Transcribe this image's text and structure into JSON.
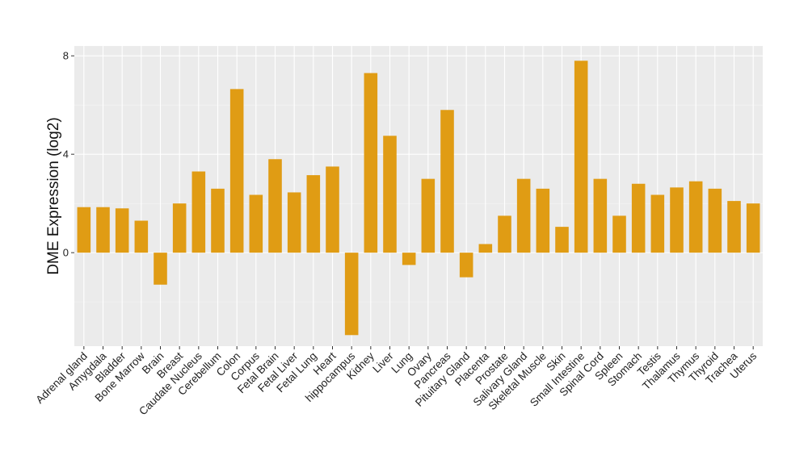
{
  "chart_data": {
    "type": "bar",
    "title": "",
    "xlabel": "",
    "ylabel": "DME Expression (log2)",
    "ylim": [
      -3.8,
      8.4
    ],
    "yticks": [
      0,
      4,
      8
    ],
    "grid": true,
    "colors": {
      "bar": "#e09c14",
      "panel": "#ebebeb",
      "grid": "#ffffff"
    },
    "categories": [
      "Adrenal gland",
      "Amygdala",
      "Bladder",
      "Bone Marrow",
      "Brain",
      "Breast",
      "Caudate Nucleus",
      "Cerebellum",
      "Colon",
      "Corpus",
      "Fetal Brain",
      "Fetal Liver",
      "Fetal Lung",
      "Heart",
      "hippocampus",
      "Kidney",
      "Liver",
      "Lung",
      "Ovary",
      "Pancreas",
      "Pituitary Gland",
      "Placenta",
      "Prostate",
      "Salivary Gland",
      "Skeletal Muscle",
      "Skin",
      "Small Intestine",
      "Spinal Cord",
      "Spleen",
      "Stomach",
      "Testis",
      "Thalamus",
      "Thymus",
      "Thyroid",
      "Trachea",
      "Uterus"
    ],
    "values": [
      1.85,
      1.85,
      1.8,
      1.3,
      -1.3,
      2.0,
      3.3,
      2.6,
      6.65,
      2.35,
      3.8,
      2.45,
      3.15,
      3.5,
      -3.35,
      7.3,
      4.75,
      -0.5,
      3.0,
      5.8,
      -1.0,
      0.35,
      1.5,
      3.0,
      2.6,
      1.05,
      7.8,
      3.0,
      1.5,
      2.8,
      2.35,
      2.65,
      2.9,
      2.6,
      2.1,
      2.0
    ]
  }
}
